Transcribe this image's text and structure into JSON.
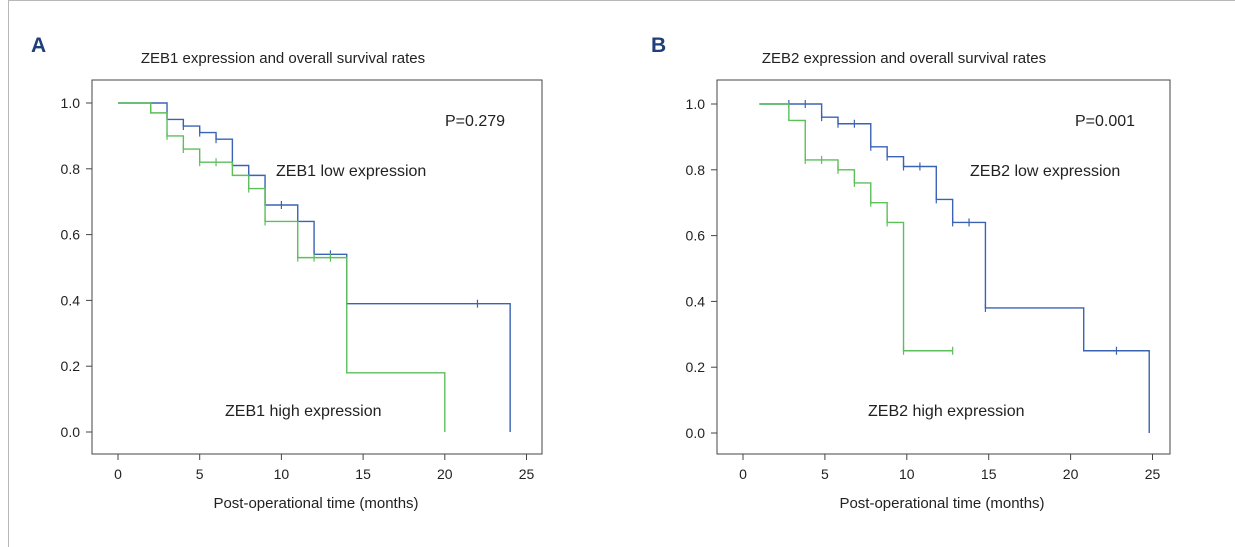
{
  "colors": {
    "low": "#3a63b3",
    "high": "#5cbf5a",
    "axis": "#444444"
  },
  "chart_data": [
    {
      "panel": "A",
      "type": "line",
      "title": "ZEB1 expression and overall survival rates",
      "xlabel": "Post-operational time (months)",
      "ylabel": "",
      "xlim": [
        0,
        25
      ],
      "ylim": [
        0,
        1
      ],
      "xticks": [
        0,
        5,
        10,
        15,
        20,
        25
      ],
      "yticks": [
        "0.0",
        "0.2",
        "0.4",
        "0.6",
        "0.8",
        "1.0"
      ],
      "pvalue": "P=0.279",
      "series": [
        {
          "name": "ZEB1 low expression",
          "color_key": "low",
          "steps": [
            [
              0,
              1.0
            ],
            [
              3,
              0.95
            ],
            [
              4,
              0.93
            ],
            [
              5,
              0.91
            ],
            [
              6,
              0.89
            ],
            [
              7,
              0.81
            ],
            [
              8,
              0.78
            ],
            [
              9,
              0.69
            ],
            [
              11,
              0.64
            ],
            [
              12,
              0.54
            ],
            [
              14,
              0.39
            ],
            [
              24,
              0.0
            ]
          ],
          "end": 24,
          "censor": [
            [
              2,
              0.98
            ],
            [
              4,
              0.93
            ],
            [
              5,
              0.91
            ],
            [
              6,
              0.89
            ],
            [
              8,
              0.78
            ],
            [
              10,
              0.69
            ],
            [
              12,
              0.54
            ],
            [
              13,
              0.54
            ],
            [
              22,
              0.39
            ]
          ]
        },
        {
          "name": "ZEB1 high expression",
          "color_key": "high",
          "steps": [
            [
              0,
              1.0
            ],
            [
              2,
              0.97
            ],
            [
              3,
              0.9
            ],
            [
              4,
              0.86
            ],
            [
              5,
              0.82
            ],
            [
              7,
              0.78
            ],
            [
              8,
              0.74
            ],
            [
              9,
              0.64
            ],
            [
              11,
              0.53
            ],
            [
              14,
              0.18
            ],
            [
              20,
              0.0
            ]
          ],
          "end": 20,
          "censor": [
            [
              3,
              0.9
            ],
            [
              4,
              0.86
            ],
            [
              5,
              0.82
            ],
            [
              6,
              0.82
            ],
            [
              8,
              0.74
            ],
            [
              9,
              0.64
            ],
            [
              11,
              0.53
            ],
            [
              12,
              0.53
            ],
            [
              13,
              0.53
            ]
          ]
        }
      ]
    },
    {
      "panel": "B",
      "type": "line",
      "title": "ZEB2 expression and overall survival rates",
      "xlabel": "Post-operational time (months)",
      "ylabel": "",
      "xlim": [
        0,
        25
      ],
      "ylim": [
        0,
        1
      ],
      "xticks": [
        0,
        5,
        10,
        15,
        20,
        25
      ],
      "yticks": [
        "0.0",
        "0.2",
        "0.4",
        "0.6",
        "0.8",
        "1.0"
      ],
      "pvalue": "P=0.001",
      "series": [
        {
          "name": "ZEB2 low expression",
          "color_key": "low",
          "steps": [
            [
              1,
              1.0
            ],
            [
              4.8,
              0.96
            ],
            [
              5.8,
              0.94
            ],
            [
              7.8,
              0.87
            ],
            [
              8.8,
              0.84
            ],
            [
              9.8,
              0.81
            ],
            [
              11.8,
              0.71
            ],
            [
              12.8,
              0.64
            ],
            [
              14.8,
              0.38
            ],
            [
              20.8,
              0.25
            ],
            [
              24.8,
              0.0
            ]
          ],
          "end": 24.8,
          "censor": [
            [
              2.8,
              1.0
            ],
            [
              3.8,
              1.0
            ],
            [
              4.8,
              0.96
            ],
            [
              5.8,
              0.94
            ],
            [
              6.8,
              0.94
            ],
            [
              7.8,
              0.87
            ],
            [
              8.8,
              0.84
            ],
            [
              9.8,
              0.81
            ],
            [
              10.8,
              0.81
            ],
            [
              11.8,
              0.71
            ],
            [
              12.8,
              0.64
            ],
            [
              13.8,
              0.64
            ],
            [
              14.8,
              0.38
            ],
            [
              22.8,
              0.25
            ]
          ]
        },
        {
          "name": "ZEB2 high expression",
          "color_key": "high",
          "steps": [
            [
              1,
              1.0
            ],
            [
              2.8,
              0.95
            ],
            [
              3.8,
              0.83
            ],
            [
              5.8,
              0.8
            ],
            [
              6.8,
              0.76
            ],
            [
              7.8,
              0.7
            ],
            [
              8.8,
              0.64
            ],
            [
              9.8,
              0.25
            ]
          ],
          "end": 12.8,
          "censor": [
            [
              3.8,
              0.83
            ],
            [
              4.8,
              0.83
            ],
            [
              5.8,
              0.8
            ],
            [
              6.8,
              0.76
            ],
            [
              7.8,
              0.7
            ],
            [
              8.8,
              0.64
            ],
            [
              9.8,
              0.25
            ],
            [
              12.8,
              0.25
            ]
          ]
        }
      ]
    }
  ]
}
